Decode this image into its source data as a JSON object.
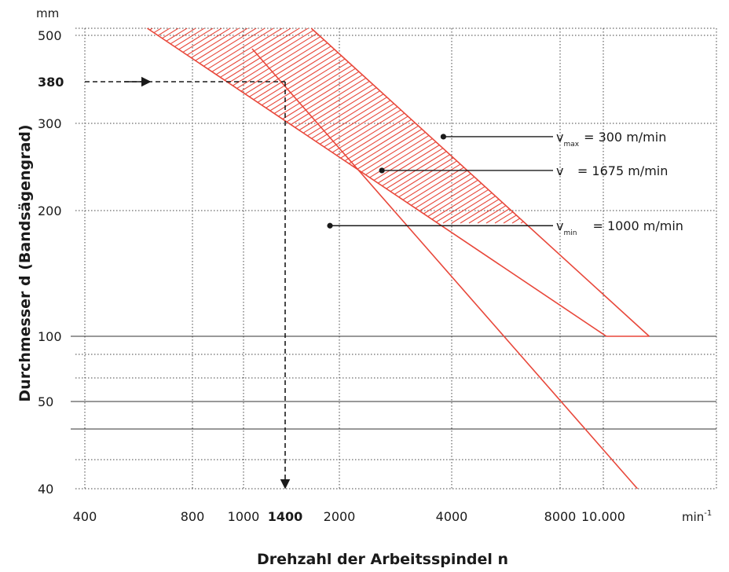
{
  "chart_data": {
    "type": "line",
    "xlabel": "Drehzahl der Arbeitsspindel n",
    "ylabel": "Durchmesser d (Bandsägengrad)",
    "x_unit": {
      "base": "min",
      "exp": "-1"
    },
    "y_unit": "mm",
    "x_ticks": [
      {
        "value": 400,
        "label": "400",
        "bold": false
      },
      {
        "value": 800,
        "label": "800",
        "bold": false
      },
      {
        "value": 1000,
        "label": "1000",
        "bold": false
      },
      {
        "value": 1400,
        "label": "1400",
        "bold": true
      },
      {
        "value": 2000,
        "label": "2000",
        "bold": false
      },
      {
        "value": 4000,
        "label": "4000",
        "bold": false
      },
      {
        "value": 8000,
        "label": "8000",
        "bold": false
      },
      {
        "value": 10000,
        "label": "10.000",
        "bold": false
      }
    ],
    "y_ticks": [
      {
        "value": 500,
        "label": "500",
        "bold": false
      },
      {
        "value": 380,
        "label": "380",
        "bold": true
      },
      {
        "value": 300,
        "label": "300",
        "bold": false
      },
      {
        "value": 200,
        "label": "200",
        "bold": false
      },
      {
        "value": 100,
        "label": "100",
        "bold": false
      },
      {
        "value": 50,
        "label": "50",
        "bold": false
      },
      {
        "value": 40,
        "label": "40",
        "bold": false
      }
    ],
    "series": [
      {
        "name": "vmin = 1000 m/min",
        "points": [
          [
            640,
            500
          ],
          [
            10200,
            100
          ]
        ]
      },
      {
        "name": "v = 1675 m/min",
        "points": [
          [
            1050,
            470
          ],
          [
            6000,
            100
          ],
          [
            12500,
            40
          ]
        ]
      },
      {
        "name": "vmax = 300 m/min",
        "points": [
          [
            1750,
            500
          ],
          [
            13500,
            100
          ]
        ]
      }
    ],
    "annotations": [
      {
        "v": "v",
        "sub": "max",
        "rest": "= 300 m/min",
        "point": [
          3800,
          282
        ]
      },
      {
        "v": "v",
        "sub": "",
        "rest": "= 1675 m/min",
        "point": [
          2600,
          241
        ]
      },
      {
        "v": "v",
        "sub": "min",
        "rest": "= 1000 m/min",
        "point": [
          1880,
          184
        ]
      }
    ],
    "reading": {
      "d": 380,
      "n": 1400
    },
    "colors": {
      "band": "#e8473a",
      "grid": "#444444",
      "text": "#1a1a1a"
    }
  }
}
